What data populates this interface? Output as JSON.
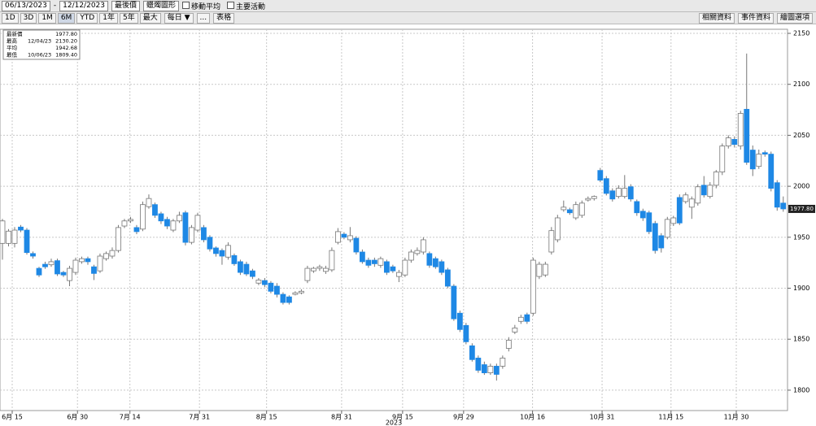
{
  "toolbar": {
    "start_date": "06/13/2023",
    "dash": "-",
    "end_date": "12/12/2023",
    "field": "最後價",
    "style": "蠟燭圖形",
    "options": [
      "移動平均",
      "主要活動"
    ],
    "ranges": [
      "1D",
      "3D",
      "1M",
      "6M",
      "YTD",
      "1年",
      "5年",
      "最大"
    ],
    "period": "每日 ▼",
    "more": "...",
    "table": "表格",
    "right_buttons": [
      "相關資料",
      "事件資料",
      "繪圖選項"
    ]
  },
  "chart_data": {
    "type": "candlestick",
    "legend": {
      "rows": [
        {
          "label": "最新價",
          "date": "",
          "value": "1977.80"
        },
        {
          "label": "最高",
          "date": "12/04/23",
          "value": "2130.20"
        },
        {
          "label": "平均",
          "date": "",
          "value": "1942.68"
        },
        {
          "label": "最低",
          "date": "10/06/23",
          "value": "1809.40"
        }
      ]
    },
    "open": [
      1944,
      1944,
      1944,
      1960,
      1957,
      1934,
      1919.5,
      1923.5,
      1923,
      1927,
      1915.5,
      1907.5,
      1915.5,
      1926,
      1929,
      1921,
      1917,
      1929,
      1931.5,
      1937,
      1961,
      1966,
      1959.5,
      1958,
      1980,
      1982,
      1973,
      1967.5,
      1957,
      1966,
      1974,
      1945,
      1957,
      1959.5,
      1950,
      1939.5,
      1937,
      1930.5,
      1932,
      1926,
      1923.5,
      1917,
      1905,
      1907.5,
      1905,
      1902,
      1894,
      1891.5,
      1894,
      1895.5,
      1907.5,
      1917,
      1919.5,
      1916.5,
      1918,
      1945,
      1953,
      1947.5,
      1949,
      1935.5,
      1927.5,
      1927.5,
      1922.5,
      1926,
      1921,
      1911.5,
      1913,
      1927.5,
      1934,
      1935.5,
      1934,
      1929,
      1926,
      1918,
      1902,
      1875.5,
      1863.5,
      1843.5,
      1831.5,
      1825,
      1817,
      1823.5,
      1823.5,
      1841,
      1857,
      1867.5,
      1874,
      1875.5,
      1911.5,
      1913,
      1935.5,
      1947.5,
      1977,
      1977,
      1969,
      1971.5,
      1986.5,
      1988,
      2015.5,
      2007.5,
      1995.5,
      1990,
      1990,
      1999.5,
      1985,
      1975.5,
      1974,
      1963.5,
      1951.5,
      1950,
      1963.5,
      1989,
      1985,
      1979.5,
      1983.5,
      2001,
      1990,
      2001,
      2014,
      2039.5,
      2046,
      2039.5,
      2075.5,
      2035.5,
      2019.5,
      2033,
      2031.5,
      2003.5,
      1983.5
    ],
    "high": [
      1968,
      1958,
      1960,
      1962,
      1959,
      1936,
      1921,
      1926,
      1929,
      1929,
      1917,
      1922,
      1930,
      1931,
      1931,
      1923,
      1934,
      1936,
      1940,
      1962,
      1968,
      1970,
      1962,
      1985,
      1992,
      1984,
      1975,
      1970,
      1968,
      1975,
      1976,
      1962,
      1974,
      1962,
      1952,
      1941,
      1939,
      1945,
      1934,
      1928,
      1926,
      1919,
      1910,
      1910,
      1907,
      1905,
      1896,
      1893,
      1897,
      1899,
      1922,
      1921,
      1923,
      1922,
      1940,
      1959,
      1955,
      1960,
      1951,
      1938,
      1930,
      1930,
      1931,
      1928,
      1923,
      1918,
      1930,
      1938,
      1940,
      1950,
      1936,
      1931,
      1928,
      1920,
      1904,
      1878,
      1866,
      1846,
      1834,
      1828,
      1826,
      1826,
      1834,
      1852,
      1864,
      1874,
      1876,
      1930,
      1926,
      1926,
      1960,
      1972,
      1986,
      1979,
      1985,
      1986,
      1990,
      1991,
      2018,
      2010,
      1998,
      2001,
      2011,
      2002,
      1987,
      1978,
      1976,
      1966,
      1954,
      1970,
      1971,
      1992,
      1994,
      1990,
      2002,
      2010,
      2004,
      2016,
      2042,
      2050,
      2049,
      2074,
      2130.2,
      2040,
      2036,
      2035,
      2034,
      2006,
      1990
    ],
    "low": [
      1928,
      1941,
      1940,
      1955,
      1933,
      1929,
      1911,
      1919,
      1921,
      1912,
      1911,
      1902,
      1913,
      1924,
      1923,
      1908,
      1915,
      1927,
      1929,
      1935,
      1959,
      1964,
      1953,
      1956,
      1978,
      1969,
      1963,
      1958,
      1955,
      1964,
      1942,
      1943,
      1955,
      1945,
      1936,
      1931,
      1923,
      1928,
      1922,
      1913,
      1912,
      1909,
      1903,
      1901,
      1895,
      1891,
      1884,
      1884,
      1893,
      1894,
      1905,
      1915,
      1917,
      1914,
      1916,
      1943,
      1948,
      1945,
      1933,
      1924,
      1920,
      1921,
      1920,
      1913,
      1915,
      1906,
      1911,
      1925,
      1932,
      1933,
      1920,
      1919,
      1913,
      1900,
      1868,
      1857,
      1845,
      1828,
      1817,
      1815,
      1815,
      1809.4,
      1821,
      1838,
      1855,
      1865,
      1865,
      1873,
      1909,
      1911,
      1933,
      1945,
      1975,
      1972,
      1967,
      1969,
      1985,
      1986,
      2004,
      1991,
      1985,
      1988,
      1988,
      1985,
      1971,
      1966,
      1953,
      1934,
      1935,
      1948,
      1961,
      1962,
      1983,
      1968,
      1981,
      1989,
      1988,
      1998,
      2011,
      2037,
      2038,
      2036,
      2021,
      2010,
      2017,
      2029,
      1995,
      1976,
      1975
    ],
    "close": [
      1966,
      1956,
      1957,
      1957,
      1935,
      1931.5,
      1913,
      1921,
      1926,
      1914,
      1913,
      1919.5,
      1927.5,
      1929,
      1926,
      1914.5,
      1931.5,
      1934,
      1937,
      1959.5,
      1966,
      1967.5,
      1955.5,
      1982,
      1988,
      1971.5,
      1966,
      1961,
      1966,
      1971.5,
      1945,
      1959.5,
      1971.5,
      1947.5,
      1938.5,
      1934,
      1931.5,
      1942,
      1924,
      1915.5,
      1914,
      1911.5,
      1908,
      1903.5,
      1897,
      1894,
      1886,
      1886,
      1895.5,
      1897,
      1919.5,
      1919.5,
      1921,
      1919.5,
      1937,
      1955.5,
      1950,
      1951.5,
      1935.5,
      1926,
      1922.5,
      1924,
      1929,
      1915.5,
      1917,
      1915.5,
      1927.5,
      1935.5,
      1937,
      1947.5,
      1922.5,
      1921,
      1915.5,
      1902,
      1870,
      1859.5,
      1847.5,
      1830,
      1819.5,
      1817,
      1823.5,
      1815.5,
      1831.5,
      1849,
      1861,
      1871.5,
      1867.5,
      1927.5,
      1923.5,
      1923.5,
      1956.5,
      1969,
      1979.5,
      1974,
      1982,
      1983.5,
      1988,
      1990,
      2006,
      1993,
      1987.5,
      1998,
      1998,
      1987.5,
      1974,
      1969,
      1955.5,
      1937,
      1939.5,
      1967.5,
      1969,
      1964,
      1991.5,
      1987.5,
      1999.5,
      1991.5,
      2001,
      2014,
      2039.5,
      2047.5,
      2041,
      2071.5,
      2023.5,
      2017,
      2031.5,
      2031.5,
      1998,
      1979.5,
      1977.8
    ],
    "up_color": "#ffffff",
    "down_color": "#1e88e5",
    "xlim": [
      -0.4,
      128.7
    ],
    "xticks": [
      {
        "value": 1.6,
        "label": "6月 15"
      },
      {
        "value": 12.3,
        "label": "6月 30"
      },
      {
        "value": 20.9,
        "label": "7月 14"
      },
      {
        "value": 32.3,
        "label": "7月 31"
      },
      {
        "value": 43.3,
        "label": "8月 15"
      },
      {
        "value": 55.6,
        "label": "8月 31"
      },
      {
        "value": 65.6,
        "label": "9月 15"
      },
      {
        "value": 75.6,
        "label": "9月 29"
      },
      {
        "value": 86.9,
        "label": "10月 16"
      },
      {
        "value": 98.3,
        "label": "10月 31"
      },
      {
        "value": 109.6,
        "label": "11月 15"
      },
      {
        "value": 120.3,
        "label": "11月 30"
      }
    ],
    "x_year": "2023",
    "ylim": [
      1780,
      2154
    ],
    "yticks": [
      1800,
      1850,
      1900,
      1950,
      2000,
      2050,
      2100,
      2150
    ],
    "grid": true,
    "last_price": {
      "value": 1977.8,
      "label": "1977.80"
    }
  }
}
